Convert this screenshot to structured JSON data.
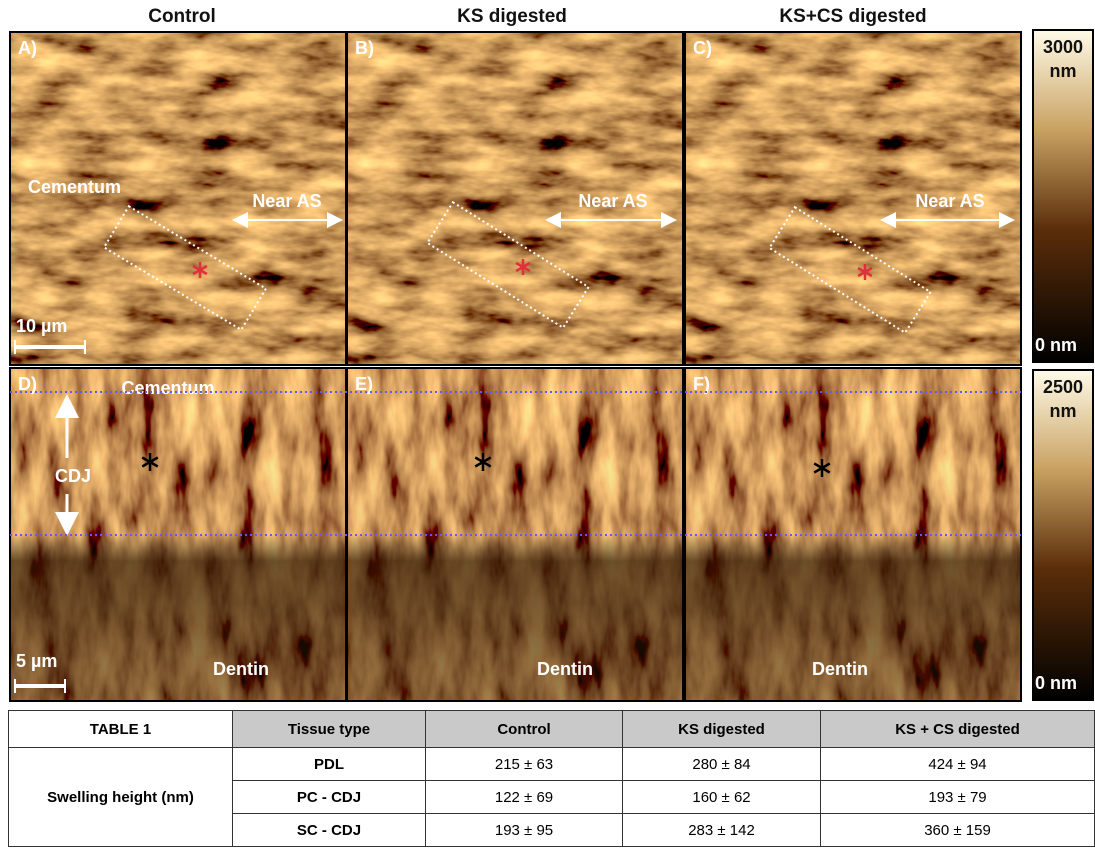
{
  "figure": {
    "column_titles": [
      "Control",
      "KS digested",
      "KS+CS digested"
    ],
    "panels": [
      {
        "label": "A)",
        "region": "Cementum",
        "arrow_label": "Near AS",
        "scale_bar": "10 µm"
      },
      {
        "label": "B)",
        "arrow_label": "Near AS"
      },
      {
        "label": "C)",
        "arrow_label": "Near AS"
      },
      {
        "label": "D)",
        "region": "Cementum",
        "junction": "CDJ",
        "scale_bar": "5 µm",
        "bottom_region": "Dentin"
      },
      {
        "label": "E)",
        "bottom_region": "Dentin"
      },
      {
        "label": "F)",
        "bottom_region": "Dentin"
      }
    ],
    "colorbars": [
      {
        "max": "3000",
        "unit": "nm",
        "min": "0 nm"
      },
      {
        "max": "2500",
        "unit": "nm",
        "min": "0 nm"
      }
    ]
  },
  "table": {
    "title": "TABLE 1",
    "headers": [
      "Tissue type",
      "Control",
      "KS digested",
      "KS + CS digested"
    ],
    "row_group": "Swelling height (nm)",
    "rows": [
      [
        "PDL",
        "215 ± 63",
        "280 ± 84",
        "424 ± 94"
      ],
      [
        "PC - CDJ",
        "122 ± 69",
        "160 ± 62",
        "193 ± 79"
      ],
      [
        "SC - CDJ",
        "193 ± 95",
        "283 ± 142",
        "360 ± 159"
      ]
    ]
  }
}
